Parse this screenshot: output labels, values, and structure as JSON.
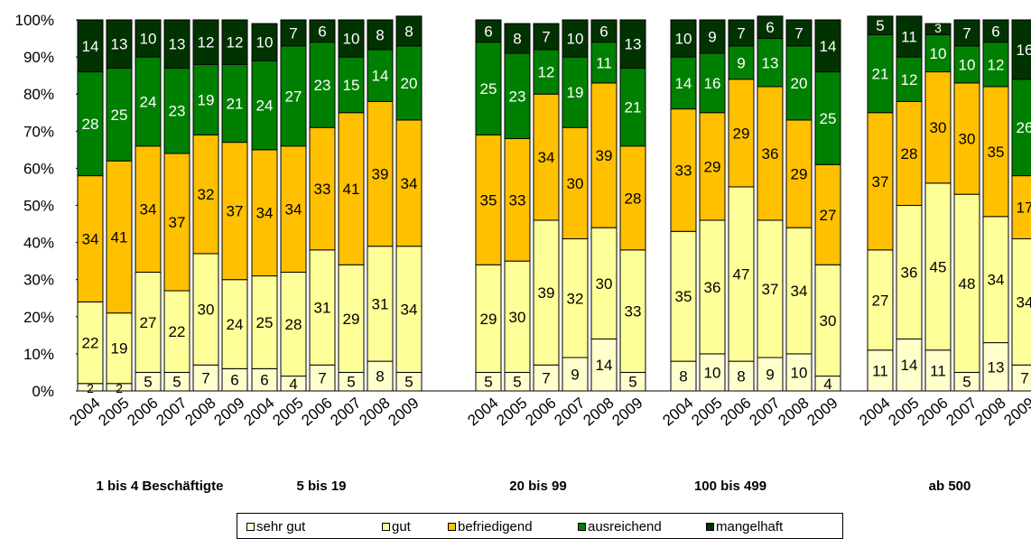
{
  "chart_data": {
    "type": "bar",
    "stacked": true,
    "percent_axis": true,
    "y_ticks": [
      "0%",
      "10%",
      "20%",
      "30%",
      "40%",
      "50%",
      "60%",
      "70%",
      "80%",
      "90%",
      "100%"
    ],
    "ylim": [
      0,
      100
    ],
    "groups": [
      {
        "label": "1 bis 4 Beschäftigte",
        "years": [
          "2004",
          "2005",
          "2006",
          "2007",
          "2008",
          "2009"
        ],
        "series": {
          "sehr gut": [
            2,
            2,
            5,
            5,
            7,
            6
          ],
          "gut": [
            22,
            19,
            27,
            22,
            30,
            24
          ],
          "befriedigend": [
            34,
            41,
            34,
            37,
            32,
            37
          ],
          "ausreichend": [
            28,
            25,
            24,
            23,
            19,
            21
          ],
          "mangelhaft": [
            14,
            13,
            10,
            13,
            12,
            12
          ]
        }
      },
      {
        "label": "5 bis 19",
        "years": [
          "2004",
          "2005",
          "2006",
          "2007",
          "2008",
          "2009"
        ],
        "series": {
          "sehr gut": [
            6,
            4,
            7,
            5,
            8,
            5
          ],
          "gut": [
            25,
            28,
            31,
            29,
            31,
            34
          ],
          "befriedigend": [
            34,
            34,
            33,
            41,
            39,
            34
          ],
          "ausreichend": [
            24,
            27,
            23,
            15,
            14,
            20
          ],
          "mangelhaft": [
            10,
            7,
            6,
            10,
            8,
            8
          ]
        }
      },
      {
        "label": "20 bis 99",
        "years": [
          "2004",
          "2005",
          "2006",
          "2007",
          "2008",
          "2009"
        ],
        "series": {
          "sehr gut": [
            5,
            5,
            7,
            9,
            14,
            5
          ],
          "gut": [
            29,
            30,
            39,
            32,
            30,
            33
          ],
          "befriedigend": [
            35,
            33,
            34,
            30,
            39,
            28
          ],
          "ausreichend": [
            25,
            23,
            12,
            19,
            11,
            21
          ],
          "mangelhaft": [
            6,
            8,
            7,
            10,
            6,
            13
          ]
        }
      },
      {
        "label": "100 bis 499",
        "years": [
          "2004",
          "2005",
          "2006",
          "2007",
          "2008",
          "2009"
        ],
        "series": {
          "sehr gut": [
            8,
            10,
            8,
            9,
            10,
            4
          ],
          "gut": [
            35,
            36,
            47,
            37,
            34,
            30
          ],
          "befriedigend": [
            33,
            29,
            29,
            36,
            29,
            27
          ],
          "ausreichend": [
            14,
            16,
            9,
            13,
            20,
            25
          ],
          "mangelhaft": [
            10,
            9,
            7,
            6,
            7,
            14
          ]
        }
      },
      {
        "label": "ab 500",
        "years": [
          "2004",
          "2005",
          "2006",
          "2007",
          "2008",
          "2009"
        ],
        "series": {
          "sehr gut": [
            11,
            14,
            11,
            5,
            13,
            7
          ],
          "gut": [
            27,
            36,
            45,
            48,
            34,
            34
          ],
          "befriedigend": [
            37,
            28,
            30,
            30,
            35,
            17
          ],
          "ausreichend": [
            21,
            12,
            10,
            10,
            12,
            26
          ],
          "mangelhaft": [
            5,
            11,
            3,
            7,
            6,
            16
          ]
        }
      }
    ],
    "legend": {
      "position": "bottom",
      "items": [
        {
          "name": "sehr gut",
          "color": "#FFFFCC"
        },
        {
          "name": "gut",
          "color": "#FFFF99"
        },
        {
          "name": "befriedigend",
          "color": "#FFC000"
        },
        {
          "name": "ausreichend",
          "color": "#008000"
        },
        {
          "name": "mangelhaft",
          "color": "#003300"
        }
      ]
    }
  }
}
